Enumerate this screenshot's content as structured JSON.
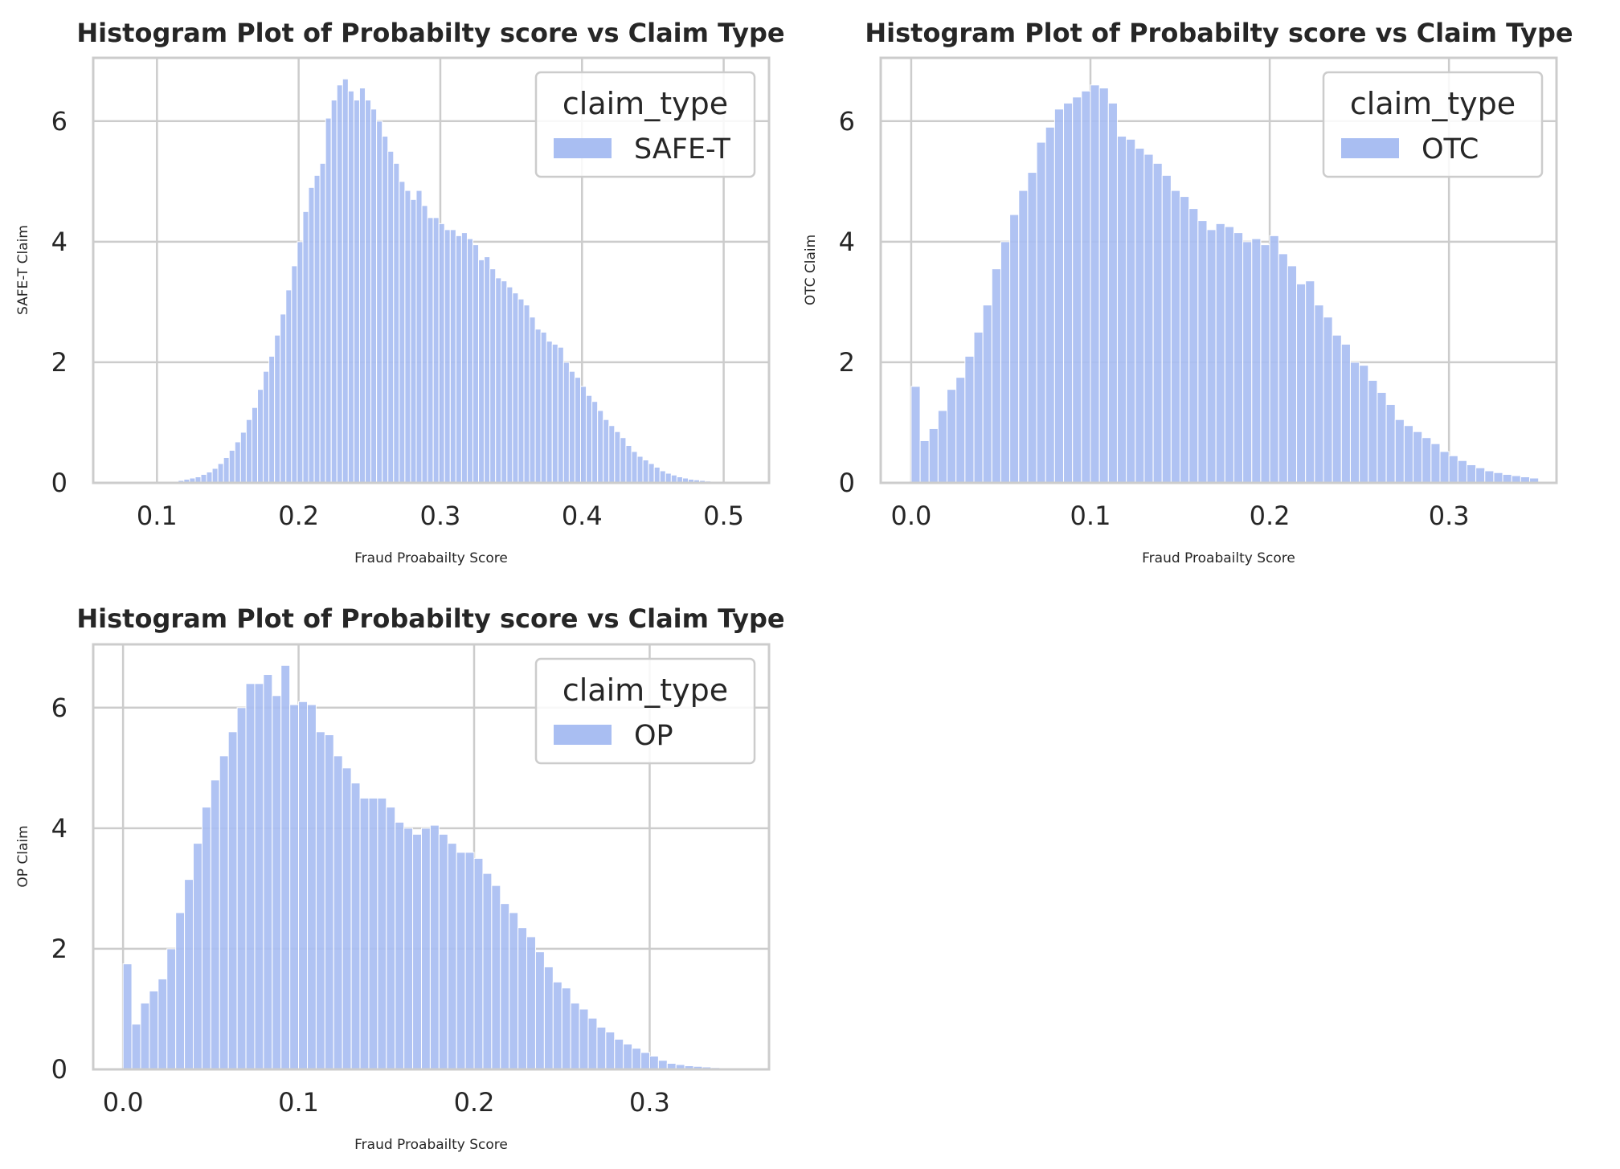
{
  "colors": {
    "bar": "#a9bef2",
    "bar_edge": "#ffffff",
    "grid": "#cccccc",
    "spine": "#cccccc",
    "text": "#262626",
    "legend_edge": "#cccccc"
  },
  "chart_data": [
    {
      "type": "histogram",
      "title": "Histogram Plot of Probabilty score vs Claim Type",
      "xlabel": "Fraud Proabailty Score",
      "ylabel": "SAFE-T Claim",
      "legend_title": "claim_type",
      "legend_entry": "SAFE-T",
      "legend_position": "upper right",
      "grid": true,
      "xlim": [
        0.055,
        0.532
      ],
      "ylim": [
        0,
        7.05
      ],
      "xticks": [
        "0.1",
        "0.2",
        "0.3",
        "0.4",
        "0.5"
      ],
      "yticks": [
        "0",
        "2",
        "4",
        "6"
      ],
      "bins": {
        "start": 0.075,
        "width": 0.004
      },
      "values": [
        0.0,
        0.0,
        0.0,
        0.0,
        0.0,
        0.0,
        0.0,
        0.01,
        0.02,
        0.02,
        0.04,
        0.06,
        0.08,
        0.1,
        0.14,
        0.18,
        0.24,
        0.32,
        0.42,
        0.54,
        0.68,
        0.84,
        1.05,
        1.25,
        1.55,
        1.85,
        2.1,
        2.45,
        2.8,
        3.2,
        3.6,
        4.0,
        4.5,
        4.9,
        5.1,
        5.3,
        6.05,
        6.35,
        6.6,
        6.7,
        6.5,
        6.35,
        6.55,
        6.35,
        6.2,
        6.0,
        5.75,
        5.5,
        5.3,
        5.0,
        4.85,
        4.7,
        4.85,
        4.6,
        4.4,
        4.4,
        4.3,
        4.2,
        4.2,
        4.1,
        4.15,
        4.05,
        3.95,
        3.7,
        3.75,
        3.55,
        3.4,
        3.35,
        3.25,
        3.15,
        3.05,
        2.95,
        2.75,
        2.55,
        2.5,
        2.35,
        2.3,
        2.25,
        2.0,
        1.85,
        1.75,
        1.6,
        1.45,
        1.35,
        1.2,
        1.05,
        0.95,
        0.85,
        0.75,
        0.62,
        0.52,
        0.44,
        0.38,
        0.32,
        0.26,
        0.2,
        0.16,
        0.13,
        0.1,
        0.08,
        0.06,
        0.05,
        0.04,
        0.03,
        0.02,
        0.01
      ]
    },
    {
      "type": "histogram",
      "title": "Histogram Plot of Probabilty score vs Claim Type",
      "xlabel": "Fraud Proabailty Score",
      "ylabel": "OTC  Claim",
      "legend_title": "claim_type",
      "legend_entry": "OTC",
      "legend_position": "upper right",
      "grid": true,
      "xlim": [
        -0.017,
        0.36
      ],
      "ylim": [
        0,
        7.05
      ],
      "xticks": [
        "0.0",
        "0.1",
        "0.2",
        "0.3"
      ],
      "yticks": [
        "0",
        "2",
        "4",
        "6"
      ],
      "bins": {
        "start": 0.0,
        "width": 0.005
      },
      "values": [
        1.6,
        0.7,
        0.9,
        1.2,
        1.55,
        1.75,
        2.1,
        2.5,
        2.95,
        3.55,
        4.0,
        4.45,
        4.85,
        5.15,
        5.65,
        5.9,
        6.2,
        6.3,
        6.4,
        6.5,
        6.6,
        6.55,
        6.3,
        5.75,
        5.7,
        5.55,
        5.45,
        5.3,
        5.1,
        4.85,
        4.75,
        4.55,
        4.35,
        4.2,
        4.3,
        4.25,
        4.15,
        4.0,
        4.05,
        3.95,
        4.1,
        3.8,
        3.6,
        3.3,
        3.35,
        2.95,
        2.75,
        2.45,
        2.3,
        2.0,
        1.95,
        1.7,
        1.5,
        1.3,
        1.05,
        0.95,
        0.85,
        0.75,
        0.65,
        0.52,
        0.45,
        0.37,
        0.3,
        0.25,
        0.2,
        0.17,
        0.14,
        0.12,
        0.1,
        0.08
      ]
    },
    {
      "type": "histogram",
      "title": "Histogram Plot of Probabilty score vs Claim Type",
      "xlabel": "Fraud Proabailty Score",
      "ylabel": "OP Claim",
      "legend_title": "claim_type",
      "legend_entry": "OP",
      "legend_position": "upper right",
      "grid": true,
      "xlim": [
        -0.017,
        0.368
      ],
      "ylim": [
        0,
        7.05
      ],
      "xticks": [
        "0.0",
        "0.1",
        "0.2",
        "0.3"
      ],
      "yticks": [
        "0",
        "2",
        "4",
        "6"
      ],
      "bins": {
        "start": 0.0,
        "width": 0.005
      },
      "values": [
        1.75,
        0.75,
        1.1,
        1.3,
        1.5,
        2.0,
        2.6,
        3.15,
        3.75,
        4.35,
        4.8,
        5.2,
        5.6,
        6.0,
        6.4,
        6.4,
        6.55,
        6.2,
        6.7,
        6.05,
        6.1,
        6.05,
        5.6,
        5.55,
        5.2,
        5.0,
        4.75,
        4.5,
        4.5,
        4.5,
        4.35,
        4.1,
        4.0,
        3.9,
        4.0,
        4.05,
        3.9,
        3.75,
        3.6,
        3.6,
        3.5,
        3.25,
        3.05,
        2.75,
        2.6,
        2.35,
        2.2,
        1.95,
        1.7,
        1.45,
        1.35,
        1.1,
        1.0,
        0.85,
        0.7,
        0.62,
        0.5,
        0.42,
        0.35,
        0.28,
        0.22,
        0.15,
        0.1,
        0.08,
        0.06,
        0.05,
        0.04,
        0.03,
        0.02,
        0.01
      ]
    }
  ]
}
